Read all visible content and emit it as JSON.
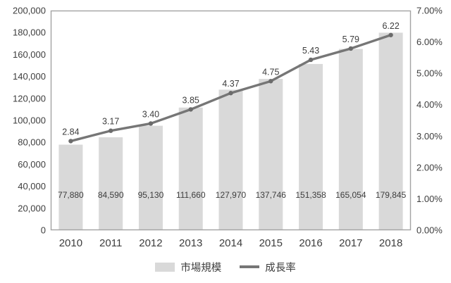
{
  "chart_data": {
    "type": "combo",
    "title": "",
    "categories": [
      "2010",
      "2011",
      "2012",
      "2013",
      "2014",
      "2015",
      "2016",
      "2017",
      "2018"
    ],
    "series": [
      {
        "name": "市場規模",
        "type": "bar",
        "axis": "left",
        "values": [
          77880,
          84590,
          95130,
          111660,
          127970,
          137746,
          151358,
          165054,
          179845
        ],
        "labels": [
          "77,880",
          "84,590",
          "95,130",
          "111,660",
          "127,970",
          "137,746",
          "151,358",
          "165,054",
          "179,845"
        ],
        "color": "#d9d9d9"
      },
      {
        "name": "成長率",
        "type": "line",
        "axis": "right",
        "values": [
          2.84,
          3.17,
          3.4,
          3.85,
          4.37,
          4.75,
          5.43,
          5.79,
          6.22
        ],
        "labels": [
          "2.84",
          "3.17",
          "3.40",
          "3.85",
          "4.37",
          "4.75",
          "5.43",
          "5.79",
          "6.22"
        ],
        "color": "#767676"
      }
    ],
    "left_axis": {
      "min": 0,
      "max": 200000,
      "step": 20000,
      "ticks": [
        "0",
        "20,000",
        "40,000",
        "60,000",
        "80,000",
        "100,000",
        "120,000",
        "140,000",
        "160,000",
        "180,000",
        "200,000"
      ]
    },
    "right_axis": {
      "min": 0,
      "max": 7,
      "step": 1,
      "ticks": [
        "0.00%",
        "1.00%",
        "2.00%",
        "3.00%",
        "4.00%",
        "5.00%",
        "6.00%",
        "7.00%"
      ]
    },
    "grid": false,
    "legend_position": "bottom"
  },
  "colors": {
    "background": "#ffffff",
    "bar": "#d9d9d9",
    "line": "#767676",
    "marker": "#6b6b6b",
    "text": "#3d3d3d",
    "axis_border": "#a3a3a3"
  }
}
